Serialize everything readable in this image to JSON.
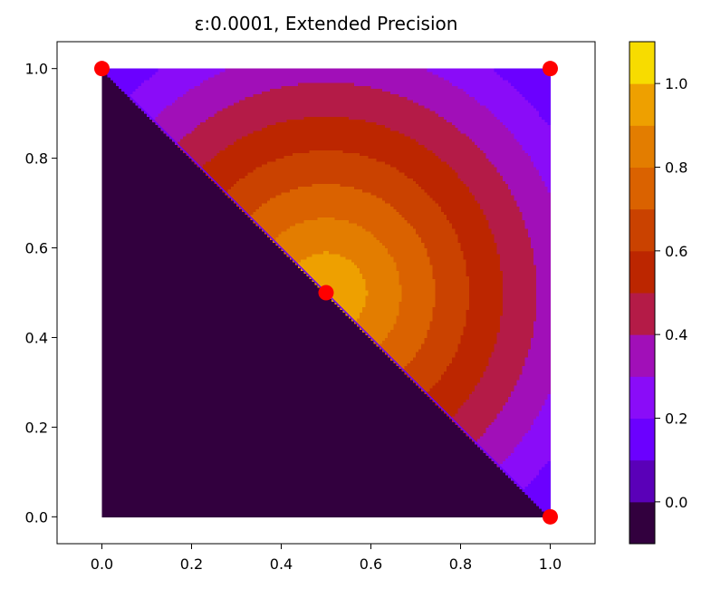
{
  "chart_data": {
    "type": "contour",
    "title": "ε:0.0001, Extended Precision",
    "xlabel": "",
    "ylabel": "",
    "xlim": [
      -0.1,
      1.1
    ],
    "ylim": [
      -0.06,
      1.06
    ],
    "x_ticks": [
      0.0,
      0.2,
      0.4,
      0.6,
      0.8,
      1.0
    ],
    "x_tick_labels": [
      "0.0",
      "0.2",
      "0.4",
      "0.6",
      "0.8",
      "1.0"
    ],
    "y_ticks": [
      0.0,
      0.2,
      0.4,
      0.6,
      0.8,
      1.0
    ],
    "y_tick_labels": [
      "0.0",
      "0.2",
      "0.4",
      "0.6",
      "0.8",
      "1.0"
    ],
    "domain": {
      "x": [
        0,
        1
      ],
      "y": [
        0,
        1
      ]
    },
    "center": [
      0.5,
      0.5
    ],
    "field_note_levels": [
      -0.1,
      0.0,
      0.1,
      0.2,
      0.3,
      0.4,
      0.5,
      0.6,
      0.7,
      0.8,
      0.9,
      1.0,
      1.1
    ],
    "level_colors": [
      "#32003e",
      "#5a00b8",
      "#6b00ff",
      "#8a0cf8",
      "#a10fb8",
      "#b41b47",
      "#bc2600",
      "#ca4200",
      "#da6200",
      "#e37d00",
      "#eea000",
      "#f7dc00"
    ],
    "below_diagonal_value": -0.05,
    "points": [
      {
        "x": 0.0,
        "y": 1.0
      },
      {
        "x": 1.0,
        "y": 1.0
      },
      {
        "x": 0.5,
        "y": 0.5
      },
      {
        "x": 1.0,
        "y": 0.0
      }
    ],
    "point_color": "#ff0000",
    "colorbar": {
      "ticks": [
        0.0,
        0.2,
        0.4,
        0.6,
        0.8,
        1.0
      ],
      "tick_labels": [
        "0.0",
        "0.2",
        "0.4",
        "0.6",
        "0.8",
        "1.0"
      ],
      "range": [
        -0.1,
        1.1
      ]
    },
    "grid": false,
    "legend": "none"
  }
}
